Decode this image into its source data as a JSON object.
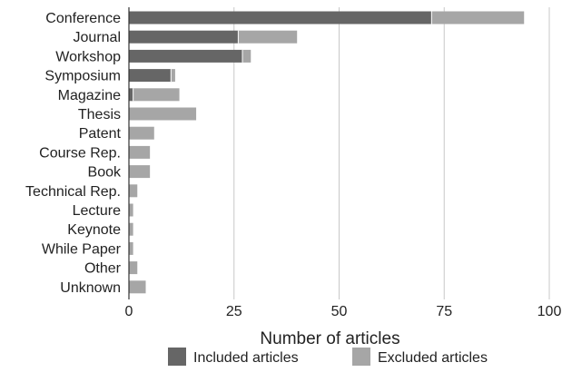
{
  "chart_data": {
    "type": "bar",
    "orientation": "horizontal",
    "stacked": true,
    "categories": [
      "Conference",
      "Journal",
      "Workshop",
      "Symposium",
      "Magazine",
      "Thesis",
      "Patent",
      "Course Rep.",
      "Book",
      "Technical Rep.",
      "Lecture",
      "Keynote",
      "While Paper",
      "Other",
      "Unknown"
    ],
    "series": [
      {
        "name": "Included articles",
        "color": "#666666",
        "values": [
          72,
          26,
          27,
          10,
          1,
          0,
          0,
          0,
          0,
          0,
          0,
          0,
          0,
          0,
          0
        ]
      },
      {
        "name": "Excluded articles",
        "color": "#a6a6a6",
        "values": [
          22,
          14,
          2,
          1,
          11,
          16,
          6,
          5,
          5,
          2,
          1,
          1,
          1,
          2,
          4
        ]
      }
    ],
    "xlabel": "Number of articles",
    "xlim": [
      0,
      100
    ],
    "xticks": [
      "0",
      "25",
      "50",
      "75",
      "100"
    ],
    "grid": true,
    "legend_position": "bottom"
  }
}
